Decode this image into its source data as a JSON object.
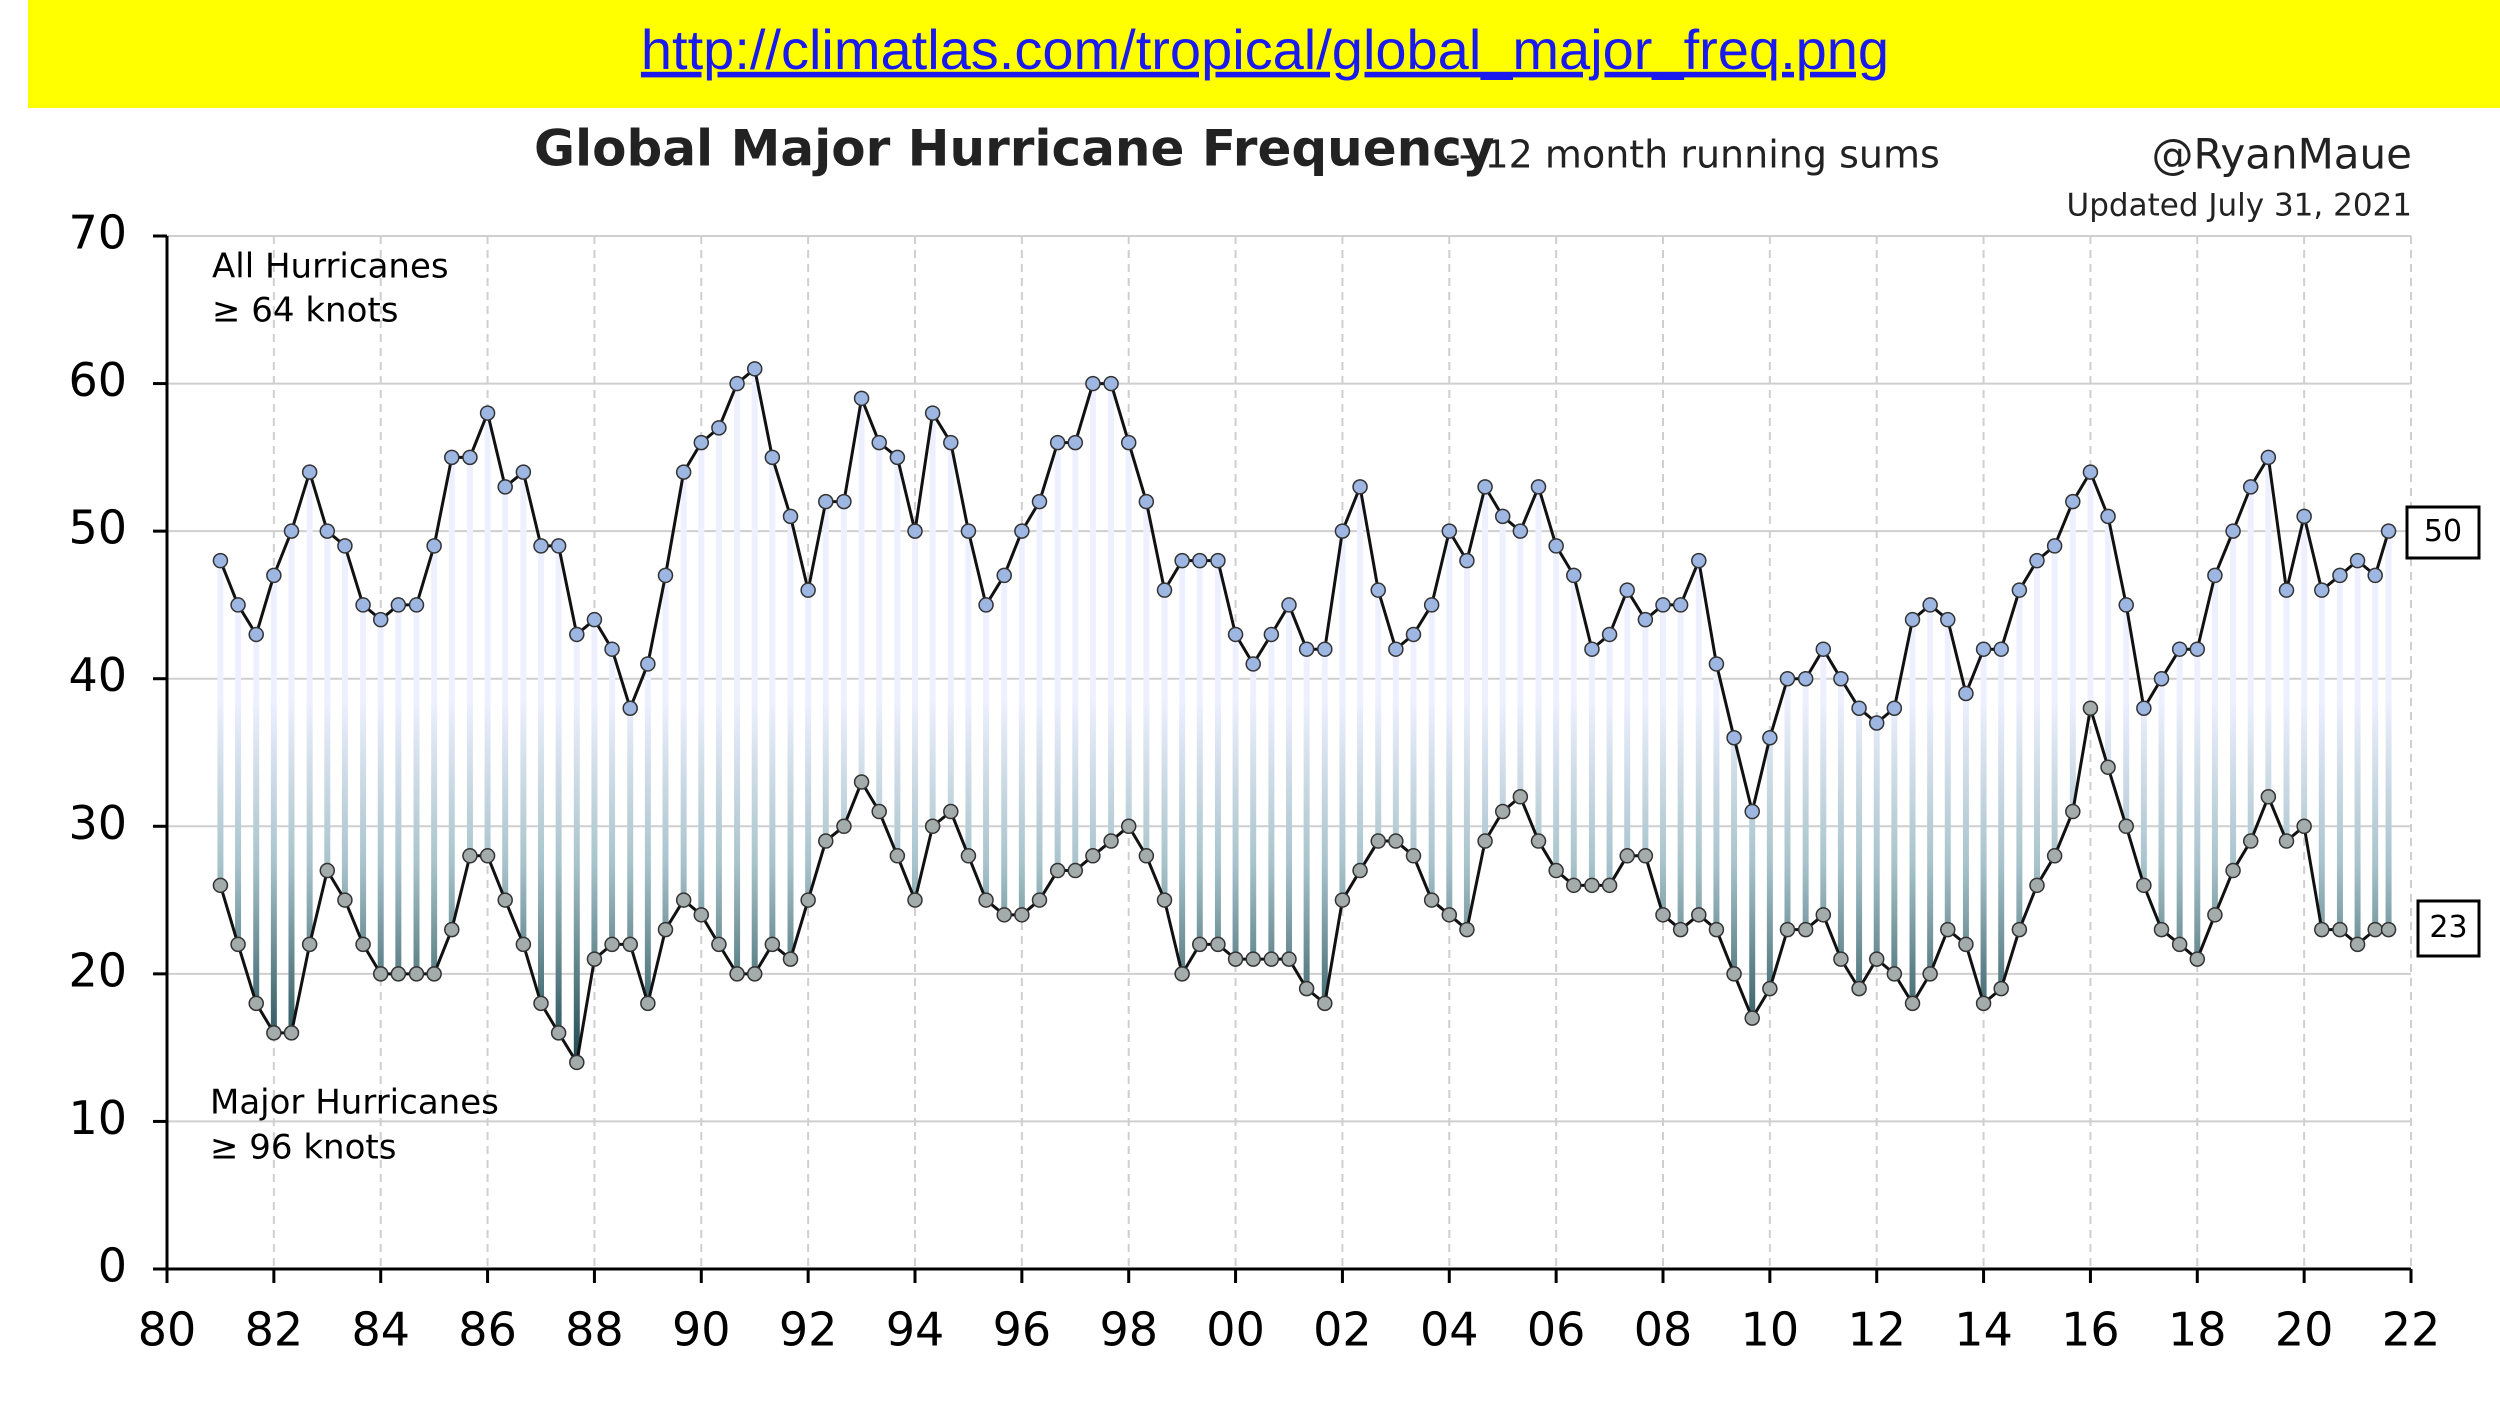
{
  "header": {
    "url": "http://climatlas.com/tropical/global_major_freq.png"
  },
  "chart_data": {
    "type": "line",
    "title": "Global Major Hurricane Frequency",
    "subtitle": "-- 12 month running sums",
    "credit": "@RyanMaue",
    "updated": "Updated July 31, 2021",
    "annotations": [
      "All Hurricanes",
      "≥ 64 knots",
      "Major Hurricanes",
      "≥ 96 knots"
    ],
    "x": [
      1981,
      1981.33,
      1981.67,
      1982,
      1982.33,
      1982.67,
      1983,
      1983.33,
      1983.67,
      1984,
      1984.33,
      1984.67,
      1985,
      1985.33,
      1985.67,
      1986,
      1986.33,
      1986.67,
      1987,
      1987.33,
      1987.67,
      1988,
      1988.33,
      1988.67,
      1989,
      1989.33,
      1989.67,
      1990,
      1990.33,
      1990.67,
      1991,
      1991.33,
      1991.67,
      1992,
      1992.33,
      1992.67,
      1993,
      1993.33,
      1993.67,
      1994,
      1994.33,
      1994.67,
      1995,
      1995.33,
      1995.67,
      1996,
      1996.33,
      1996.67,
      1997,
      1997.33,
      1997.67,
      1998,
      1998.33,
      1998.67,
      1999,
      1999.33,
      1999.67,
      2000,
      2000.33,
      2000.67,
      2001,
      2001.33,
      2001.67,
      2002,
      2002.33,
      2002.67,
      2003,
      2003.33,
      2003.67,
      2004,
      2004.33,
      2004.67,
      2005,
      2005.33,
      2005.67,
      2006,
      2006.33,
      2006.67,
      2007,
      2007.33,
      2007.67,
      2008,
      2008.33,
      2008.67,
      2009,
      2009.33,
      2009.67,
      2010,
      2010.33,
      2010.67,
      2011,
      2011.33,
      2011.67,
      2012,
      2012.33,
      2012.67,
      2013,
      2013.33,
      2013.67,
      2014,
      2014.33,
      2014.67,
      2015,
      2015.33,
      2015.67,
      2016,
      2016.33,
      2016.67,
      2017,
      2017.33,
      2017.67,
      2018,
      2018.33,
      2018.67,
      2019,
      2019.33,
      2019.67,
      2020,
      2020.33,
      2020.67,
      2021,
      2021.33,
      2021.58
    ],
    "series": [
      {
        "name": "All Hurricanes",
        "color": "#9db6e2",
        "values": [
          48,
          45,
          43,
          47,
          50,
          54,
          50,
          49,
          45,
          44,
          45,
          45,
          49,
          55,
          55,
          58,
          53,
          54,
          49,
          49,
          43,
          44,
          42,
          38,
          41,
          47,
          54,
          56,
          57,
          60,
          61,
          55,
          51,
          46,
          52,
          52,
          59,
          56,
          55,
          50,
          58,
          56,
          50,
          45,
          47,
          50,
          52,
          56,
          56,
          60,
          60,
          56,
          52,
          46,
          48,
          48,
          48,
          43,
          41,
          43,
          45,
          42,
          42,
          50,
          53,
          46,
          42,
          43,
          45,
          50,
          48,
          53,
          51,
          50,
          53,
          49,
          47,
          42,
          43,
          46,
          44,
          45,
          45,
          48,
          41,
          36,
          31,
          36,
          40,
          40,
          42,
          40,
          38,
          37,
          38,
          44,
          45,
          44,
          39,
          42,
          42,
          46,
          48,
          49,
          52,
          54,
          51,
          45,
          38,
          40,
          42,
          42,
          47,
          50,
          53,
          55,
          46,
          51,
          46,
          47,
          48,
          47,
          50
        ]
      },
      {
        "name": "Major Hurricanes",
        "color": "#a3abab",
        "values": [
          26,
          22,
          18,
          16,
          16,
          22,
          27,
          25,
          22,
          20,
          20,
          20,
          20,
          23,
          28,
          28,
          25,
          22,
          18,
          16,
          14,
          21,
          22,
          22,
          18,
          23,
          25,
          24,
          22,
          20,
          20,
          22,
          21,
          25,
          29,
          30,
          33,
          31,
          28,
          25,
          30,
          31,
          28,
          25,
          24,
          24,
          25,
          27,
          27,
          28,
          29,
          30,
          28,
          25,
          20,
          22,
          22,
          21,
          21,
          21,
          21,
          19,
          18,
          25,
          27,
          29,
          29,
          28,
          25,
          24,
          23,
          29,
          31,
          32,
          29,
          27,
          26,
          26,
          26,
          28,
          28,
          24,
          23,
          24,
          23,
          20,
          17,
          19,
          23,
          23,
          24,
          21,
          19,
          21,
          20,
          18,
          20,
          23,
          22,
          18,
          19,
          23,
          26,
          28,
          31,
          38,
          34,
          30,
          26,
          23,
          22,
          21,
          24,
          27,
          29,
          32,
          29,
          30,
          23,
          23,
          22,
          23,
          23
        ]
      }
    ],
    "xlim": [
      1980,
      2022
    ],
    "xticks": [
      {
        "value": 1980,
        "label": "80"
      },
      {
        "value": 1982,
        "label": "82"
      },
      {
        "value": 1984,
        "label": "84"
      },
      {
        "value": 1986,
        "label": "86"
      },
      {
        "value": 1988,
        "label": "88"
      },
      {
        "value": 1990,
        "label": "90"
      },
      {
        "value": 1992,
        "label": "92"
      },
      {
        "value": 1994,
        "label": "94"
      },
      {
        "value": 1996,
        "label": "96"
      },
      {
        "value": 1998,
        "label": "98"
      },
      {
        "value": 2000,
        "label": "00"
      },
      {
        "value": 2002,
        "label": "02"
      },
      {
        "value": 2004,
        "label": "04"
      },
      {
        "value": 2006,
        "label": "06"
      },
      {
        "value": 2008,
        "label": "08"
      },
      {
        "value": 2010,
        "label": "10"
      },
      {
        "value": 2012,
        "label": "12"
      },
      {
        "value": 2014,
        "label": "14"
      },
      {
        "value": 2016,
        "label": "16"
      },
      {
        "value": 2018,
        "label": "18"
      },
      {
        "value": 2020,
        "label": "20"
      },
      {
        "value": 2022,
        "label": "22"
      }
    ],
    "ylim": [
      0,
      70
    ],
    "yticks": [
      0,
      10,
      20,
      30,
      40,
      50,
      60,
      70
    ],
    "grid": true
  }
}
